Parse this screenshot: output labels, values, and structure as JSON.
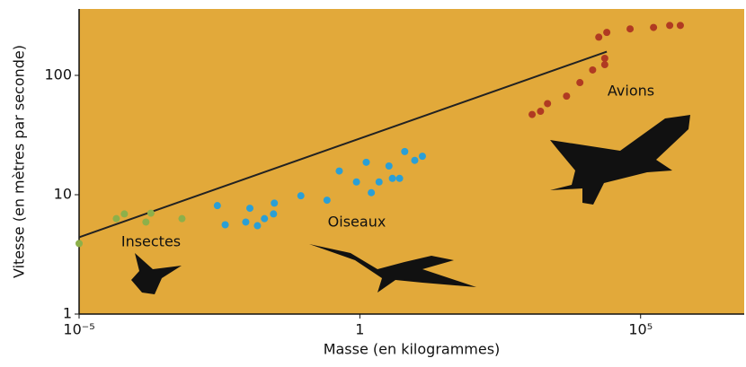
{
  "chart_data": {
    "type": "scatter",
    "x_label": "Masse (en kilogrammes)",
    "y_label": "Vitesse (en mètres par seconde)",
    "log_x": true,
    "log_y": true,
    "xlim": [
      1e-05,
      7000000
    ],
    "ylim": [
      1,
      360
    ],
    "xticks": [
      {
        "value": 1e-05,
        "label": "10⁻⁵"
      },
      1,
      {
        "value": 100000,
        "label": "10⁵"
      }
    ],
    "yticks": [
      1,
      10,
      100
    ],
    "background": "#e2a93a",
    "annotations": [
      "Insectes",
      "Oiseaux",
      "Avions"
    ],
    "series": [
      {
        "color": "#8db04a",
        "x": [
          1e-05,
          4.6e-05,
          6.4e-05,
          0.000155,
          0.00019,
          0.00068
        ],
        "values": [
          3.9,
          6.3,
          6.9,
          5.9,
          7.0,
          6.3
        ]
      },
      {
        "color": "#2a9fd6",
        "x": [
          0.0029,
          0.004,
          0.0093,
          0.011,
          0.015,
          0.02,
          0.029,
          0.03,
          0.089,
          0.26,
          0.43,
          0.87,
          1.3,
          1.6,
          2.2,
          3.3,
          3.8,
          5.1,
          6.3,
          9.5,
          13
        ],
        "values": [
          8.1,
          5.6,
          5.9,
          7.7,
          5.5,
          6.3,
          6.9,
          8.5,
          9.8,
          9.0,
          15.8,
          12.8,
          18.7,
          10.4,
          12.8,
          17.4,
          13.7,
          13.7,
          23,
          19.4,
          21
        ]
      },
      {
        "color": "#b03a22",
        "x": [
          1170,
          1650,
          2200,
          4800,
          8300,
          14000,
          23000,
          18000,
          25000,
          23000,
          65000,
          170000,
          330000,
          510000
        ],
        "values": [
          47,
          50,
          58,
          67,
          87,
          111,
          123,
          209,
          229,
          139,
          245,
          252,
          262,
          262
        ]
      }
    ],
    "trend": {
      "color": "#222222",
      "x": [
        1e-05,
        25000
      ],
      "values": [
        4.4,
        158
      ]
    }
  }
}
